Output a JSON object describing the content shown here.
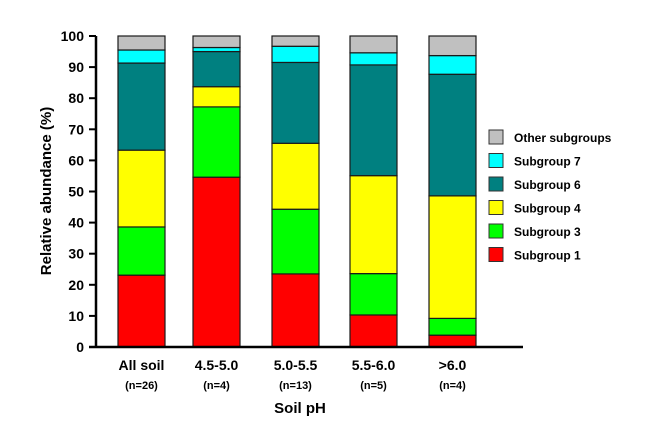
{
  "chart_data": {
    "type": "bar",
    "stacked": true,
    "title": "",
    "xlabel": "Soil pH",
    "ylabel": "Relative abundance (%)",
    "ylim": [
      0,
      100
    ],
    "yticks": [
      0,
      10,
      20,
      30,
      40,
      50,
      60,
      70,
      80,
      90,
      100
    ],
    "grid": false,
    "legend_position": "right",
    "categories": [
      "All soil",
      "4.5-5.0",
      "5.0-5.5",
      "5.5-6.0",
      ">6.0"
    ],
    "category_sublabels": [
      "(n=26)",
      "(n=4)",
      "(n=13)",
      "(n=5)",
      "(n=4)"
    ],
    "series": [
      {
        "name": "Subgroup 1",
        "color": "#ff0000",
        "values": [
          23.1,
          54.6,
          23.5,
          10.3,
          3.8
        ]
      },
      {
        "name": "Subgroup 3",
        "color": "#00ff00",
        "values": [
          15.5,
          22.6,
          20.8,
          13.3,
          5.4
        ]
      },
      {
        "name": "Subgroup 4",
        "color": "#ffff00",
        "values": [
          24.7,
          6.5,
          21.2,
          31.5,
          39.4
        ]
      },
      {
        "name": "Subgroup 6",
        "color": "#008080",
        "values": [
          28.0,
          11.3,
          26.0,
          35.6,
          39.1
        ]
      },
      {
        "name": "Subgroup 7",
        "color": "#00ffff",
        "values": [
          4.2,
          1.3,
          5.2,
          3.9,
          6.0
        ]
      },
      {
        "name": "Other subgroups",
        "color": "#c0c0c0",
        "values": [
          4.5,
          3.7,
          3.3,
          5.4,
          6.3
        ]
      }
    ],
    "legend_order": [
      "Other subgroups",
      "Subgroup 7",
      "Subgroup 6",
      "Subgroup 4",
      "Subgroup 3",
      "Subgroup 1"
    ]
  }
}
